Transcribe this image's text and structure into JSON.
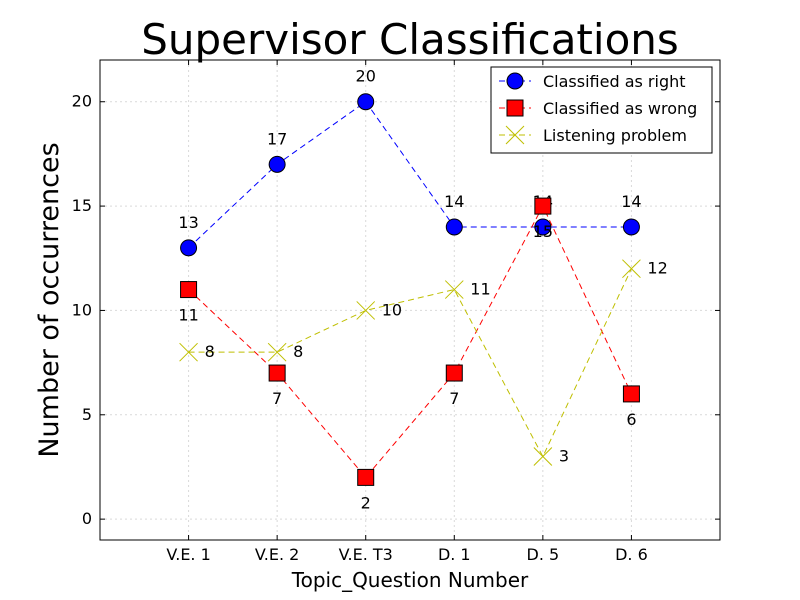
{
  "chart_data": {
    "type": "line",
    "title": "Supervisor Classifications",
    "xlabel": "Topic_Question Number",
    "ylabel": "Number of occurrences",
    "categories": [
      "V.E. 1",
      "V.E. 2",
      "V.E. T3",
      "D. 1",
      "D. 5",
      "D. 6"
    ],
    "ylim": [
      -1,
      22
    ],
    "yticks": [
      0,
      5,
      10,
      15,
      20
    ],
    "grid": true,
    "legend_position": "top-right",
    "series": [
      {
        "name": "Classified as right",
        "values": [
          13,
          17,
          20,
          14,
          14,
          14
        ],
        "color": "#0000ff",
        "marker": "circle",
        "label_position": "above"
      },
      {
        "name": "Classified as wrong",
        "values": [
          11,
          7,
          2,
          7,
          15,
          6
        ],
        "color": "#ff0000",
        "marker": "square",
        "label_position": "below"
      },
      {
        "name": "Listening problem",
        "values": [
          8,
          8,
          10,
          11,
          3,
          12
        ],
        "color": "#bfbf00",
        "marker": "x",
        "label_position": "right"
      }
    ]
  }
}
